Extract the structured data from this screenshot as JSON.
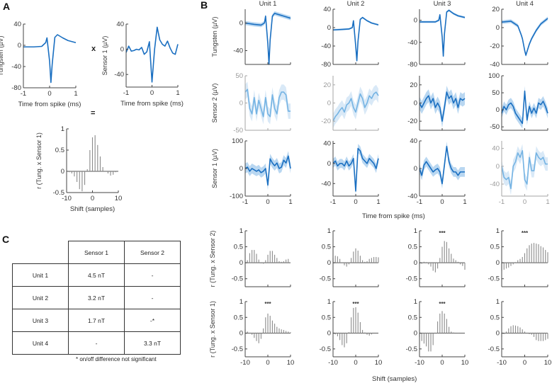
{
  "panel_labels": {
    "a": "A",
    "b": "B",
    "c": "C"
  },
  "operators": {
    "times": "x",
    "equals": "="
  },
  "colors": {
    "dark": "#1a6fc1",
    "light": "#74b3e3",
    "dark_fill": "#a8cdee",
    "light_fill": "#cfe4f5",
    "stem": "#8a8a8a",
    "axis": "#444444",
    "axis_faded": "#a6a6a6"
  },
  "panel_b": {
    "time_xlabel": "Time from spike (ms)",
    "shift_xlabel": "Shift (samples)"
  },
  "chart_data": [
    {
      "id": "a_tungsten",
      "type": "line",
      "xlim": [
        -1,
        1
      ],
      "ylim": [
        -80,
        40
      ],
      "xticks": [
        -1,
        0,
        1
      ],
      "yticks": [
        40,
        0,
        -40,
        -80
      ],
      "xlabel": "Time from spike (ms)",
      "ylabel": "Tungsten (µV)",
      "show_xticklabels": true,
      "faded": false,
      "band": 0,
      "t": [
        -1,
        -0.6,
        -0.3,
        -0.15,
        -0.1,
        0,
        0.05,
        0.1,
        0.2,
        0.3,
        0.5,
        0.7,
        1
      ],
      "y": [
        -3,
        -3,
        -2,
        5,
        14,
        -30,
        -70,
        -35,
        15,
        20,
        14,
        9,
        5
      ]
    },
    {
      "id": "a_sensor1",
      "type": "line",
      "xlim": [
        -1,
        1
      ],
      "ylim": [
        -60,
        40
      ],
      "xticks": [
        -1,
        0,
        1
      ],
      "yticks": [
        40,
        0,
        -40
      ],
      "xlabel": "Time from spike (ms)",
      "ylabel": "Sensor 1 (µV)",
      "show_xticklabels": true,
      "faded": false,
      "band": 0,
      "t": [
        -1,
        -0.9,
        -0.8,
        -0.7,
        -0.6,
        -0.5,
        -0.4,
        -0.3,
        -0.2,
        -0.1,
        0,
        0.1,
        0.2,
        0.3,
        0.4,
        0.5,
        0.6,
        0.7,
        0.8,
        0.9,
        1
      ],
      "y": [
        -5,
        5,
        -3,
        -2,
        0,
        -1,
        3,
        -8,
        -4,
        12,
        -52,
        0,
        35,
        15,
        8,
        5,
        13,
        2,
        -6,
        -8,
        8
      ]
    },
    {
      "id": "a_corr",
      "type": "stem",
      "xlim": [
        -10,
        10
      ],
      "ylim": [
        -0.5,
        1
      ],
      "xticks": [
        -10,
        0,
        10
      ],
      "yticks": [
        1,
        0.5,
        0,
        -0.5
      ],
      "xlabel": "Shift (samples)",
      "ylabel": "r (Tung. x Sensor 1)",
      "show_xticklabels": true,
      "faded": false,
      "stars": "",
      "values": [
        0,
        -0.02,
        -0.05,
        -0.12,
        -0.25,
        -0.42,
        -0.47,
        -0.32,
        0.05,
        0.5,
        0.8,
        0.85,
        0.62,
        0.35,
        0.1,
        0,
        -0.05,
        -0.1,
        -0.08,
        -0.02,
        0
      ]
    },
    {
      "id": "b_u1_tungsten",
      "type": "line",
      "title": "Unit 1",
      "xlim": [
        -1,
        1
      ],
      "ylim": [
        -60,
        20
      ],
      "xticks": [
        -1,
        0,
        1
      ],
      "yticks": [
        0,
        -40
      ],
      "ylabel": "Tungsten (µV)",
      "show_xticklabels": false,
      "faded": false,
      "band": 3,
      "t": [
        -1,
        -0.6,
        -0.3,
        -0.15,
        -0.1,
        0,
        0.05,
        0.1,
        0.2,
        0.3,
        0.5,
        0.7,
        1
      ],
      "y": [
        0,
        -2,
        -3,
        0,
        10,
        -30,
        -60,
        -25,
        10,
        14,
        12,
        10,
        7
      ]
    },
    {
      "id": "b_u2_tungsten",
      "type": "line",
      "title": "Unit 2",
      "xlim": [
        -1,
        1
      ],
      "ylim": [
        -80,
        40
      ],
      "xticks": [
        -1,
        0,
        1
      ],
      "yticks": [
        40,
        0,
        -40,
        -80
      ],
      "ylabel": "",
      "show_xticklabels": false,
      "faded": false,
      "band": 2,
      "t": [
        -1,
        -0.6,
        -0.3,
        -0.15,
        -0.1,
        0,
        0.05,
        0.1,
        0.2,
        0.3,
        0.5,
        0.7,
        1
      ],
      "y": [
        -5,
        -4,
        -3,
        0,
        15,
        -40,
        -72,
        -30,
        18,
        22,
        15,
        10,
        6
      ]
    },
    {
      "id": "b_u3_tungsten",
      "type": "line",
      "title": "Unit 3",
      "xlim": [
        -1,
        1
      ],
      "ylim": [
        -80,
        20
      ],
      "xticks": [
        -1,
        0,
        1
      ],
      "yticks": [
        0,
        -40,
        -80
      ],
      "ylabel": "",
      "show_xticklabels": false,
      "faded": false,
      "band": 2,
      "t": [
        -1,
        -0.6,
        -0.3,
        -0.15,
        -0.1,
        0,
        0.05,
        0.1,
        0.2,
        0.3,
        0.5,
        0.7,
        1
      ],
      "y": [
        -3,
        -3,
        -3,
        0,
        10,
        -30,
        -65,
        -25,
        15,
        18,
        12,
        8,
        5
      ]
    },
    {
      "id": "b_u4_tungsten",
      "type": "line",
      "title": "Unit 4",
      "xlim": [
        -1,
        1
      ],
      "ylim": [
        -40,
        20
      ],
      "xticks": [
        -1,
        0,
        1
      ],
      "yticks": [
        20,
        0,
        -20,
        -40
      ],
      "ylabel": "",
      "show_xticklabels": false,
      "faded": false,
      "band": 2,
      "t": [
        -1,
        -0.6,
        -0.3,
        -0.15,
        -0.1,
        0,
        0.05,
        0.1,
        0.2,
        0.3,
        0.5,
        0.7,
        1
      ],
      "y": [
        6,
        7,
        2,
        -8,
        -12,
        -25,
        -30,
        -26,
        -18,
        -12,
        -3,
        4,
        10
      ]
    },
    {
      "id": "b_u1_sensor2",
      "type": "line",
      "xlim": [
        -1,
        1
      ],
      "ylim": [
        -50,
        50
      ],
      "xticks": [
        -1,
        0,
        1
      ],
      "yticks": [
        50,
        0,
        -50
      ],
      "ylabel": "Sensor 2 (µV)",
      "show_xticklabels": false,
      "faded": true,
      "band": 14,
      "t": [
        -1,
        -0.9,
        -0.8,
        -0.7,
        -0.6,
        -0.5,
        -0.4,
        -0.3,
        -0.2,
        -0.1,
        0,
        0.1,
        0.2,
        0.3,
        0.4,
        0.5,
        0.6,
        0.7,
        0.8,
        0.9,
        1
      ],
      "y": [
        20,
        25,
        -10,
        -20,
        10,
        -20,
        5,
        -10,
        -25,
        10,
        -20,
        -25,
        15,
        -10,
        -20,
        10,
        20,
        20,
        15,
        -15,
        -15
      ]
    },
    {
      "id": "b_u2_sensor2",
      "type": "line",
      "xlim": [
        -1,
        1
      ],
      "ylim": [
        -30,
        30
      ],
      "xticks": [
        -1,
        0,
        1
      ],
      "yticks": [
        20,
        0,
        -20
      ],
      "ylabel": "",
      "show_xticklabels": false,
      "faded": true,
      "band": 8,
      "t": [
        -1,
        -0.9,
        -0.8,
        -0.7,
        -0.6,
        -0.5,
        -0.4,
        -0.3,
        -0.2,
        -0.1,
        0,
        0.1,
        0.2,
        0.3,
        0.4,
        0.5,
        0.6,
        0.7,
        0.8,
        0.9,
        1
      ],
      "y": [
        -20,
        -15,
        -12,
        -8,
        -5,
        -10,
        -2,
        0,
        5,
        -5,
        -10,
        0,
        10,
        5,
        -5,
        0,
        8,
        5,
        10,
        12,
        8
      ]
    },
    {
      "id": "b_u3_sensor2",
      "type": "line",
      "xlim": [
        -1,
        1
      ],
      "ylim": [
        -30,
        30
      ],
      "xticks": [
        -1,
        0,
        1
      ],
      "yticks": [
        20,
        0,
        -20
      ],
      "ylabel": "",
      "show_xticklabels": false,
      "faded": false,
      "band": 7,
      "t": [
        -1,
        -0.9,
        -0.8,
        -0.7,
        -0.6,
        -0.5,
        -0.4,
        -0.3,
        -0.2,
        -0.1,
        0,
        0.1,
        0.2,
        0.3,
        0.4,
        0.5,
        0.6,
        0.7,
        0.8,
        0.9,
        1
      ],
      "y": [
        0,
        -5,
        0,
        5,
        8,
        0,
        5,
        -5,
        0,
        -5,
        -20,
        -5,
        12,
        5,
        8,
        0,
        5,
        -5,
        5,
        3,
        5
      ]
    },
    {
      "id": "b_u4_sensor2",
      "type": "line",
      "xlim": [
        -1,
        1
      ],
      "ylim": [
        -60,
        100
      ],
      "xticks": [
        -1,
        0,
        1
      ],
      "yticks": [
        100,
        50,
        0,
        -50
      ],
      "ylabel": "",
      "show_xticklabels": false,
      "faded": false,
      "band": 15,
      "t": [
        -1,
        -0.9,
        -0.8,
        -0.7,
        -0.6,
        -0.5,
        -0.4,
        -0.3,
        -0.2,
        -0.1,
        0,
        0.1,
        0.2,
        0.3,
        0.4,
        0.5,
        0.6,
        0.7,
        0.8,
        0.9,
        1
      ],
      "y": [
        -10,
        10,
        0,
        15,
        20,
        10,
        -10,
        -20,
        -30,
        -40,
        55,
        -30,
        10,
        -10,
        5,
        -10,
        20,
        15,
        25,
        10,
        -10
      ]
    },
    {
      "id": "b_u1_sensor1",
      "type": "line",
      "xlim": [
        -1,
        1
      ],
      "ylim": [
        -100,
        100
      ],
      "xticks": [
        -1,
        0,
        1
      ],
      "yticks": [
        100,
        0,
        -100
      ],
      "ylabel": "Sensor 1 (µV)",
      "show_xticklabels": true,
      "faded": false,
      "band": 18,
      "t": [
        -1,
        -0.9,
        -0.8,
        -0.7,
        -0.6,
        -0.5,
        -0.4,
        -0.3,
        -0.2,
        -0.1,
        0,
        0.1,
        0.2,
        0.3,
        0.4,
        0.5,
        0.6,
        0.7,
        0.8,
        0.9,
        1
      ],
      "y": [
        0,
        5,
        -10,
        0,
        -5,
        -10,
        -5,
        -15,
        -10,
        0,
        -60,
        35,
        20,
        10,
        20,
        0,
        5,
        30,
        20,
        45,
        0
      ]
    },
    {
      "id": "b_u2_sensor1",
      "type": "line",
      "xlim": [
        -1,
        1
      ],
      "ylim": [
        -65,
        45
      ],
      "xticks": [
        -1,
        0,
        1
      ],
      "yticks": [
        40,
        0,
        -40
      ],
      "ylabel": "",
      "show_xticklabels": true,
      "faded": false,
      "band": 9,
      "t": [
        -1,
        -0.9,
        -0.8,
        -0.7,
        -0.6,
        -0.5,
        -0.4,
        -0.3,
        -0.2,
        -0.1,
        0,
        0.1,
        0.2,
        0.3,
        0.4,
        0.5,
        0.6,
        0.7,
        0.8,
        0.9,
        1
      ],
      "y": [
        0,
        5,
        -5,
        0,
        0,
        -5,
        5,
        -5,
        0,
        10,
        -55,
        30,
        25,
        10,
        5,
        0,
        10,
        5,
        0,
        -10,
        10
      ]
    },
    {
      "id": "b_u3_sensor1",
      "type": "line",
      "xlim": [
        -1,
        1
      ],
      "ylim": [
        -40,
        40
      ],
      "xticks": [
        -1,
        0,
        1
      ],
      "yticks": [
        40,
        0,
        -40
      ],
      "ylabel": "",
      "show_xticklabels": true,
      "faded": false,
      "band": 7,
      "t": [
        -1,
        -0.9,
        -0.8,
        -0.7,
        -0.6,
        -0.5,
        -0.4,
        -0.3,
        -0.2,
        -0.1,
        0,
        0.1,
        0.2,
        0.3,
        0.4,
        0.5,
        0.6,
        0.7,
        0.8,
        0.9,
        1
      ],
      "y": [
        0,
        -10,
        5,
        10,
        5,
        0,
        -5,
        -2,
        0,
        -5,
        -22,
        5,
        32,
        10,
        0,
        -5,
        -5,
        -10,
        -5,
        -5,
        -5
      ]
    },
    {
      "id": "b_u4_sensor1",
      "type": "line",
      "xlim": [
        -1,
        1
      ],
      "ylim": [
        -67,
        57
      ],
      "xticks": [
        -1,
        0,
        1
      ],
      "yticks": [
        40,
        0,
        -40
      ],
      "ylabel": "",
      "show_xticklabels": true,
      "faded": true,
      "band": 15,
      "t": [
        -1,
        -0.9,
        -0.8,
        -0.7,
        -0.6,
        -0.5,
        -0.4,
        -0.3,
        -0.2,
        -0.1,
        0,
        0.1,
        0.2,
        0.3,
        0.4,
        0.5,
        0.6,
        0.7,
        0.8,
        0.9,
        1
      ],
      "y": [
        0,
        -25,
        -30,
        -25,
        -50,
        0,
        10,
        30,
        20,
        35,
        -30,
        -40,
        20,
        -10,
        -10,
        30,
        20,
        15,
        20,
        5,
        5
      ]
    },
    {
      "id": "b_u1_corr_s2",
      "type": "stem",
      "xlim": [
        -10,
        10
      ],
      "ylim": [
        -0.75,
        1
      ],
      "xticks": [
        -10,
        0,
        10
      ],
      "yticks": [
        1,
        0.5,
        0,
        -0.5
      ],
      "ylabel": "r (Tung. x Sensor 2)",
      "show_xticklabels": false,
      "faded": false,
      "stars": "",
      "values": [
        0,
        0.08,
        0.3,
        0.4,
        0.4,
        0.28,
        0.1,
        -0.02,
        -0.03,
        0.08,
        0.25,
        0.37,
        0.37,
        0.25,
        0.15,
        0.05,
        0.03,
        0.05,
        0.1,
        0.12,
        0
      ]
    },
    {
      "id": "b_u2_corr_s2",
      "type": "stem",
      "xlim": [
        -10,
        10
      ],
      "ylim": [
        -0.75,
        1
      ],
      "xticks": [
        -10,
        0,
        10
      ],
      "yticks": [
        1,
        0.5,
        0,
        -0.5
      ],
      "ylabel": "",
      "show_xticklabels": false,
      "faded": false,
      "stars": "",
      "values": [
        0.15,
        0.22,
        0.2,
        0.12,
        0,
        -0.08,
        -0.12,
        -0.05,
        0.15,
        0.35,
        0.45,
        0.38,
        0.22,
        0.08,
        0.03,
        0.05,
        0.12,
        0.15,
        0.18,
        0.18,
        0.17
      ]
    },
    {
      "id": "b_u3_corr_s2",
      "type": "stem",
      "xlim": [
        -10,
        10
      ],
      "ylim": [
        -0.75,
        1
      ],
      "xticks": [
        -10,
        0,
        10
      ],
      "yticks": [
        1,
        0.5,
        0,
        -0.5
      ],
      "ylabel": "",
      "show_xticklabels": false,
      "faded": false,
      "stars": "***",
      "values": [
        -0.05,
        -0.03,
        0.03,
        0.02,
        -0.05,
        -0.12,
        -0.25,
        -0.3,
        -0.18,
        0.15,
        0.5,
        0.68,
        0.65,
        0.45,
        0.28,
        0.13,
        0.08,
        0.03,
        -0.05,
        -0.1,
        -0.22
      ]
    },
    {
      "id": "b_u4_corr_s2",
      "type": "stem",
      "xlim": [
        -10,
        10
      ],
      "ylim": [
        -0.75,
        1
      ],
      "xticks": [
        -10,
        0,
        10
      ],
      "yticks": [
        1,
        0.5,
        0,
        -0.5
      ],
      "ylabel": "",
      "show_xticklabels": false,
      "faded": false,
      "stars": "***",
      "values": [
        -0.25,
        -0.22,
        -0.18,
        -0.15,
        -0.1,
        -0.05,
        0.02,
        0.08,
        0.12,
        0.18,
        0.3,
        0.45,
        0.55,
        0.6,
        0.62,
        0.6,
        0.58,
        0.52,
        0.48,
        0.4,
        0.33
      ]
    },
    {
      "id": "b_u1_corr_s1",
      "type": "stem",
      "xlim": [
        -10,
        10
      ],
      "ylim": [
        -0.75,
        1
      ],
      "xticks": [
        -10,
        0,
        10
      ],
      "yticks": [
        1,
        0.5,
        0,
        -0.5
      ],
      "ylabel": "r (Tung. x Sensor 1)",
      "show_xticklabels": true,
      "faded": false,
      "stars": "***",
      "values": [
        0.12,
        0.05,
        0,
        -0.05,
        -0.15,
        -0.25,
        -0.32,
        -0.18,
        0.15,
        0.5,
        0.62,
        0.55,
        0.4,
        0.3,
        0.2,
        0.15,
        0.12,
        0.1,
        0.07,
        0.05,
        0.03
      ]
    },
    {
      "id": "b_u2_corr_s1",
      "type": "stem",
      "xlim": [
        -10,
        10
      ],
      "ylim": [
        -0.75,
        1
      ],
      "xticks": [
        -10,
        0,
        10
      ],
      "yticks": [
        1,
        0.5,
        0,
        -0.5
      ],
      "ylabel": "",
      "show_xticklabels": true,
      "faded": false,
      "stars": "***",
      "values": [
        -0.02,
        -0.04,
        -0.1,
        -0.22,
        -0.38,
        -0.45,
        -0.32,
        0.03,
        0.5,
        0.8,
        0.82,
        0.65,
        0.35,
        0.1,
        0.02,
        -0.05,
        -0.08,
        -0.04,
        0,
        0,
        0
      ]
    },
    {
      "id": "b_u3_corr_s1",
      "type": "stem",
      "xlim": [
        -10,
        10
      ],
      "ylim": [
        -0.75,
        1
      ],
      "xticks": [
        -10,
        0,
        10
      ],
      "yticks": [
        1,
        0.5,
        0,
        -0.5
      ],
      "ylabel": "",
      "show_xticklabels": true,
      "faded": false,
      "stars": "***",
      "values": [
        -0.12,
        -0.25,
        -0.33,
        -0.42,
        -0.58,
        -0.58,
        -0.38,
        0,
        0.37,
        0.62,
        0.7,
        0.62,
        0.45,
        0.2,
        0.05,
        0.02,
        0,
        0.01,
        0,
        0,
        0
      ]
    },
    {
      "id": "b_u4_corr_s1",
      "type": "stem",
      "xlim": [
        -10,
        10
      ],
      "ylim": [
        -0.75,
        1
      ],
      "xticks": [
        -10,
        0,
        10
      ],
      "yticks": [
        1,
        0.5,
        0,
        -0.5
      ],
      "ylabel": "",
      "show_xticklabels": true,
      "faded": false,
      "stars": "",
      "values": [
        -0.12,
        -0.03,
        0.05,
        0.15,
        0.22,
        0.25,
        0.24,
        0.22,
        0.18,
        0.12,
        0.05,
        0,
        -0.03,
        -0.05,
        -0.12,
        -0.22,
        -0.25,
        -0.25,
        -0.25,
        -0.22,
        -0.18
      ]
    }
  ],
  "table": {
    "headers": [
      "Sensor 1",
      "Sensor 2"
    ],
    "rows": [
      {
        "unit": "Unit 1",
        "sensor1": "4.5 nT",
        "sensor2": "-"
      },
      {
        "unit": "Unit 2",
        "sensor1": "3.2 nT",
        "sensor2": "-"
      },
      {
        "unit": "Unit 3",
        "sensor1": "1.7 nT",
        "sensor2": "-*"
      },
      {
        "unit": "Unit 4",
        "sensor1": "-",
        "sensor2": "3.3 nT"
      }
    ],
    "footnote": "* on/off difference not significant"
  }
}
